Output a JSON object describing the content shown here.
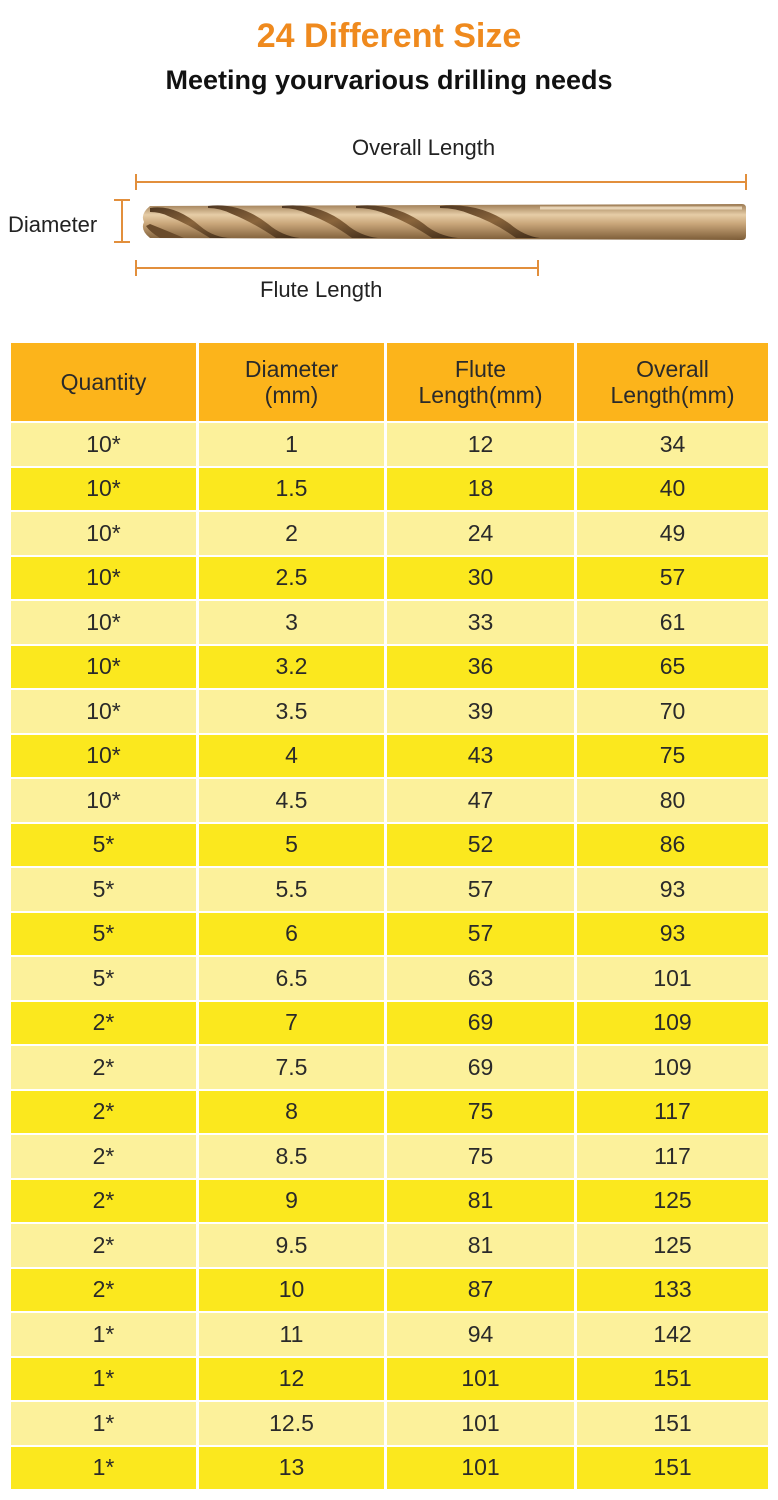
{
  "header": {
    "title": "24 Different Size",
    "subtitle": "Meeting yourvarious drilling needs"
  },
  "diagram": {
    "overall_length_label": "Overall Length",
    "diameter_label": "Diameter",
    "flute_length_label": "Flute Length",
    "colors": {
      "drill_body": "#c8a77c",
      "flute_shadow": "#7a5a34",
      "dimension_line": "#e28f3c"
    }
  },
  "table": {
    "headers": [
      [
        "Quantity"
      ],
      [
        "Diameter",
        "(mm)"
      ],
      [
        "Flute",
        "Length(mm)"
      ],
      [
        "Overall",
        "Length(mm)"
      ]
    ],
    "rows": [
      [
        "10*",
        "1",
        "12",
        "34"
      ],
      [
        "10*",
        "1.5",
        "18",
        "40"
      ],
      [
        "10*",
        "2",
        "24",
        "49"
      ],
      [
        "10*",
        "2.5",
        "30",
        "57"
      ],
      [
        "10*",
        "3",
        "33",
        "61"
      ],
      [
        "10*",
        "3.2",
        "36",
        "65"
      ],
      [
        "10*",
        "3.5",
        "39",
        "70"
      ],
      [
        "10*",
        "4",
        "43",
        "75"
      ],
      [
        "10*",
        "4.5",
        "47",
        "80"
      ],
      [
        "5*",
        "5",
        "52",
        "86"
      ],
      [
        "5*",
        "5.5",
        "57",
        "93"
      ],
      [
        "5*",
        "6",
        "57",
        "93"
      ],
      [
        "5*",
        "6.5",
        "63",
        "101"
      ],
      [
        "2*",
        "7",
        "69",
        "109"
      ],
      [
        "2*",
        "7.5",
        "69",
        "109"
      ],
      [
        "2*",
        "8",
        "75",
        "117"
      ],
      [
        "2*",
        "8.5",
        "75",
        "117"
      ],
      [
        "2*",
        "9",
        "81",
        "125"
      ],
      [
        "2*",
        "9.5",
        "81",
        "125"
      ],
      [
        "2*",
        "10",
        "87",
        "133"
      ],
      [
        "1*",
        "11",
        "94",
        "142"
      ],
      [
        "1*",
        "12",
        "101",
        "151"
      ],
      [
        "1*",
        "12.5",
        "101",
        "151"
      ],
      [
        "1*",
        "13",
        "101",
        "151"
      ]
    ],
    "colors": {
      "header": "#fcb41b",
      "row_light": "#fcf19b",
      "row_dark": "#fbe81e"
    }
  }
}
